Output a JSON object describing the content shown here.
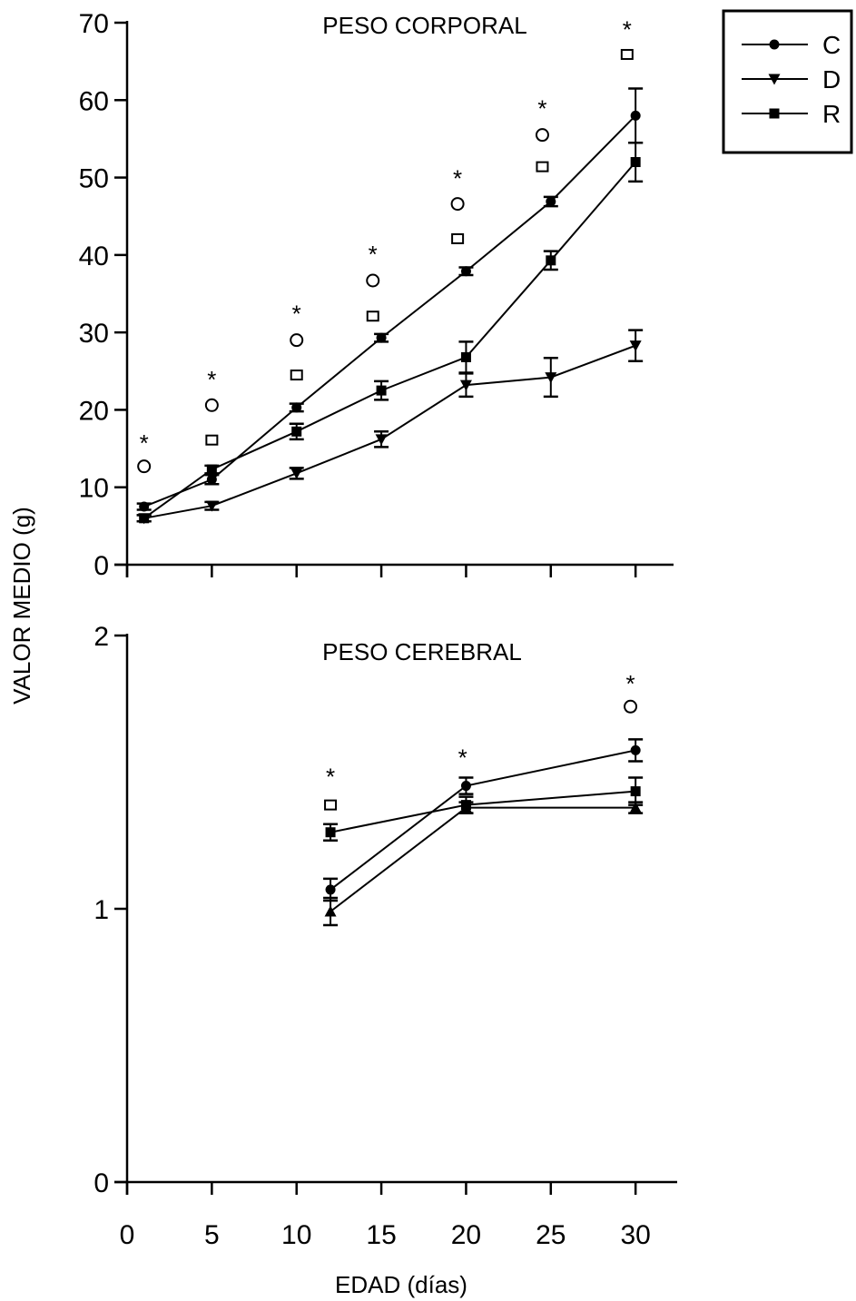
{
  "chart_data": [
    {
      "type": "line",
      "title": "PESO CORPORAL",
      "xlabel": "",
      "ylabel": "",
      "xlim": [
        0,
        32
      ],
      "ylim": [
        0,
        70
      ],
      "yticks": [
        0,
        10,
        20,
        30,
        40,
        50,
        60,
        70
      ],
      "grid": false,
      "series": [
        {
          "name": "C",
          "marker": "circle",
          "x": [
            1,
            5,
            10,
            15,
            20,
            25,
            30
          ],
          "y": [
            7.5,
            11,
            20.3,
            29.3,
            37.9,
            46.9,
            58.0
          ],
          "err": [
            0.4,
            0.6,
            0.5,
            0.5,
            0.5,
            0.6,
            3.5
          ]
        },
        {
          "name": "D",
          "marker": "triangle-down",
          "x": [
            1,
            5,
            10,
            15,
            20,
            25,
            30
          ],
          "y": [
            6.0,
            7.6,
            11.8,
            16.2,
            23.2,
            24.2,
            28.3
          ],
          "err": [
            0.4,
            0.5,
            0.7,
            1.0,
            1.5,
            2.5,
            2.0
          ]
        },
        {
          "name": "R",
          "marker": "square",
          "x": [
            1,
            5,
            10,
            15,
            20,
            25,
            30
          ],
          "y": [
            6.0,
            12.3,
            17.2,
            22.5,
            26.8,
            39.3,
            52.0
          ],
          "err": [
            0.4,
            0.5,
            1.0,
            1.2,
            2.0,
            1.2,
            2.5
          ]
        }
      ],
      "annotations": [
        {
          "x": 1,
          "y": 16.3,
          "text": "*"
        },
        {
          "x": 5,
          "y": 24.5,
          "text": "*"
        },
        {
          "x": 10,
          "y": 33.0,
          "text": "*"
        },
        {
          "x": 14.5,
          "y": 40.7,
          "text": "*"
        },
        {
          "x": 19.5,
          "y": 50.5,
          "text": "*"
        },
        {
          "x": 24.5,
          "y": 59.5,
          "text": "*"
        },
        {
          "x": 29.5,
          "y": 69.7,
          "text": "*"
        }
      ],
      "circle_markers": [
        {
          "x": 1,
          "y": 12.7
        },
        {
          "x": 5,
          "y": 20.6
        },
        {
          "x": 10,
          "y": 29.0
        },
        {
          "x": 14.5,
          "y": 36.7
        },
        {
          "x": 19.5,
          "y": 46.6
        },
        {
          "x": 24.5,
          "y": 55.5
        }
      ],
      "square_markers": [
        {
          "x": 5,
          "y": 16.1
        },
        {
          "x": 10,
          "y": 24.5
        },
        {
          "x": 14.5,
          "y": 32.1
        },
        {
          "x": 19.5,
          "y": 42.1
        },
        {
          "x": 24.5,
          "y": 51.4
        },
        {
          "x": 29.5,
          "y": 65.9
        }
      ]
    },
    {
      "type": "line",
      "title": "PESO CEREBRAL",
      "xlabel": "EDAD (días)",
      "ylabel": "",
      "xlim": [
        0,
        32
      ],
      "ylim": [
        0,
        2
      ],
      "yticks": [
        0,
        1,
        2
      ],
      "xticks": [
        0,
        5,
        10,
        15,
        20,
        25,
        30
      ],
      "grid": false,
      "series": [
        {
          "name": "C",
          "marker": "circle",
          "x": [
            12,
            20,
            30
          ],
          "y": [
            1.07,
            1.45,
            1.58
          ],
          "err": [
            0.04,
            0.03,
            0.04
          ]
        },
        {
          "name": "D",
          "marker": "triangle-up",
          "x": [
            12,
            20,
            30
          ],
          "y": [
            0.99,
            1.37,
            1.37
          ],
          "err": [
            0.05,
            0.02,
            0.02
          ]
        },
        {
          "name": "R",
          "marker": "square",
          "x": [
            12,
            20,
            30
          ],
          "y": [
            1.28,
            1.38,
            1.43
          ],
          "err": [
            0.03,
            0.03,
            0.05
          ]
        }
      ],
      "annotations": [
        {
          "x": 12,
          "y": 1.5,
          "text": "*"
        },
        {
          "x": 19.8,
          "y": 1.57,
          "text": "*"
        },
        {
          "x": 29.7,
          "y": 1.84,
          "text": "*"
        }
      ],
      "circle_markers": [
        {
          "x": 29.7,
          "y": 1.74
        }
      ],
      "square_markers": [
        {
          "x": 12,
          "y": 1.38
        }
      ]
    }
  ],
  "shared_ylabel": "VALOR MEDIO (g)",
  "legend": {
    "placement": "top-right",
    "entries": [
      {
        "label": "C",
        "marker": "circle"
      },
      {
        "label": "D",
        "marker": "triangle-down"
      },
      {
        "label": "R",
        "marker": "square"
      }
    ]
  }
}
